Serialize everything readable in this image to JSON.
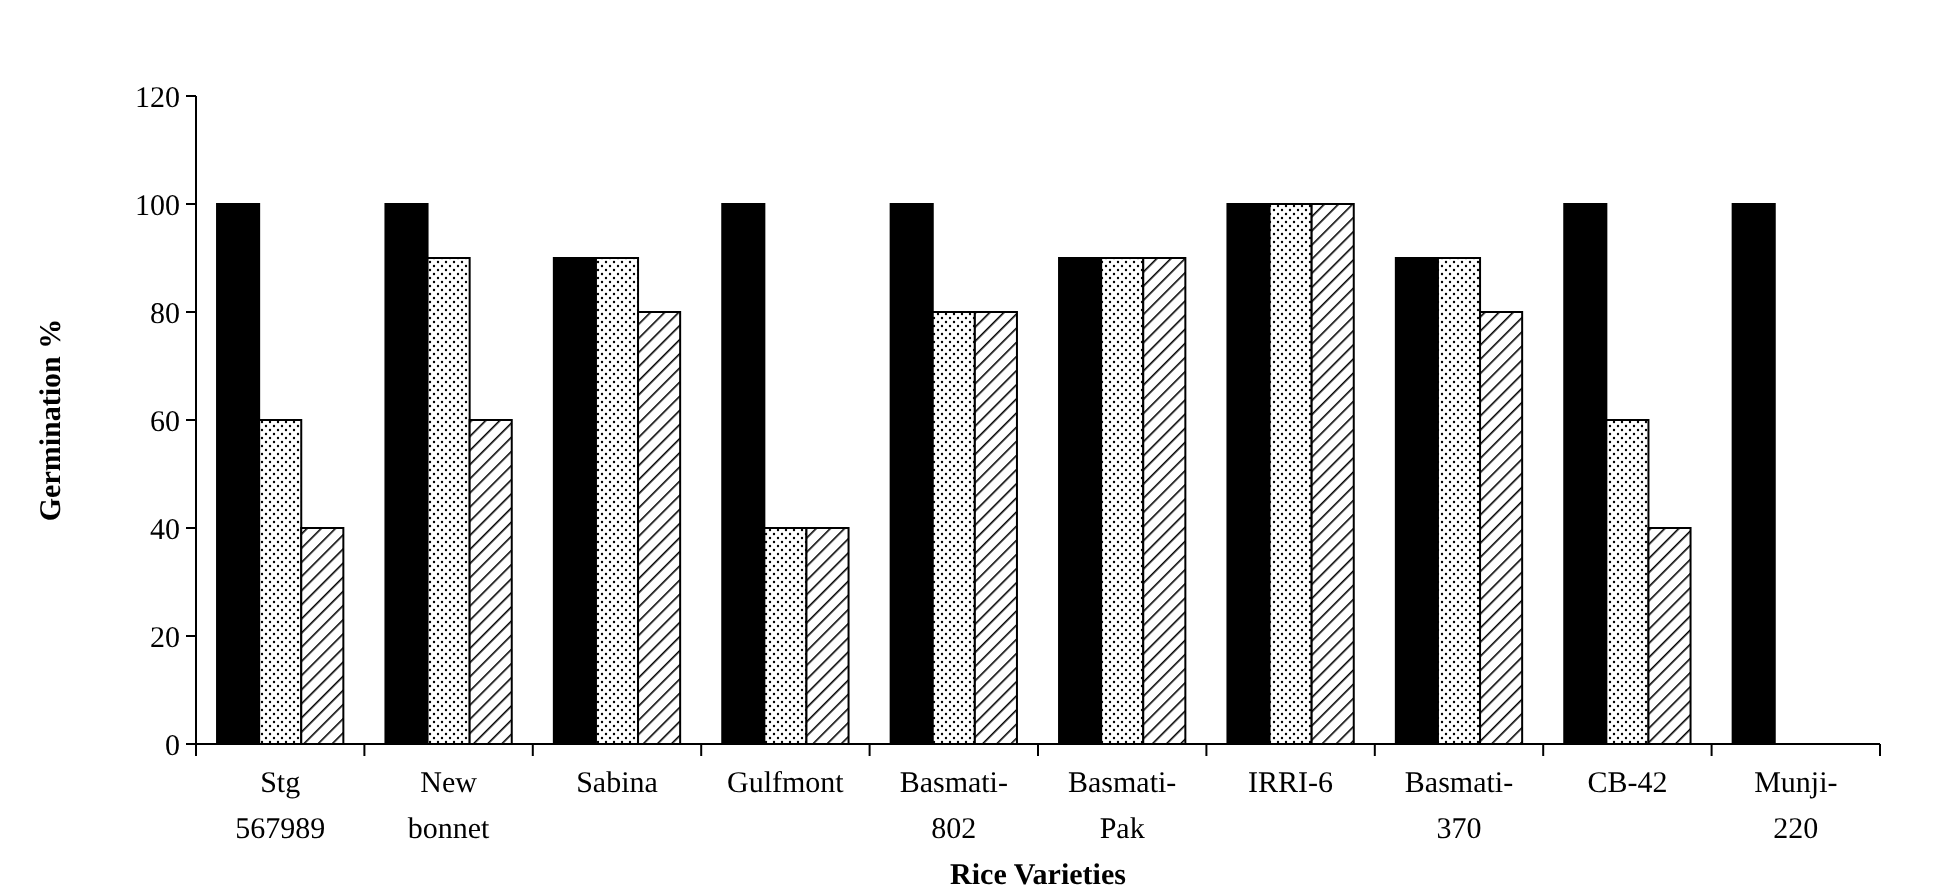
{
  "chart_data": {
    "type": "bar",
    "xlabel": "Rice Varieties",
    "ylabel": "Germination %",
    "categories": [
      "Stg 567989",
      "New bonnet",
      "Sabina",
      "Gulfmont",
      "Basmati-802",
      "Basmati-Pak",
      "IRRI-6",
      "Basmati-370",
      "CB-42",
      "Munji-220"
    ],
    "series": [
      {
        "color": "#000000",
        "values": [
          100,
          100,
          90,
          100,
          100,
          90,
          100,
          90,
          100,
          100
        ]
      },
      {
        "color": "#ffffff",
        "values": [
          60,
          90,
          90,
          40,
          80,
          90,
          100,
          90,
          60,
          0
        ]
      },
      {
        "color": "#ffffff",
        "values": [
          40,
          60,
          80,
          40,
          80,
          90,
          100,
          80,
          40,
          0
        ]
      }
    ],
    "ylim": [
      0,
      120
    ],
    "yticks": [
      0,
      20,
      40,
      60,
      80,
      100,
      120
    ],
    "grid": false
  }
}
